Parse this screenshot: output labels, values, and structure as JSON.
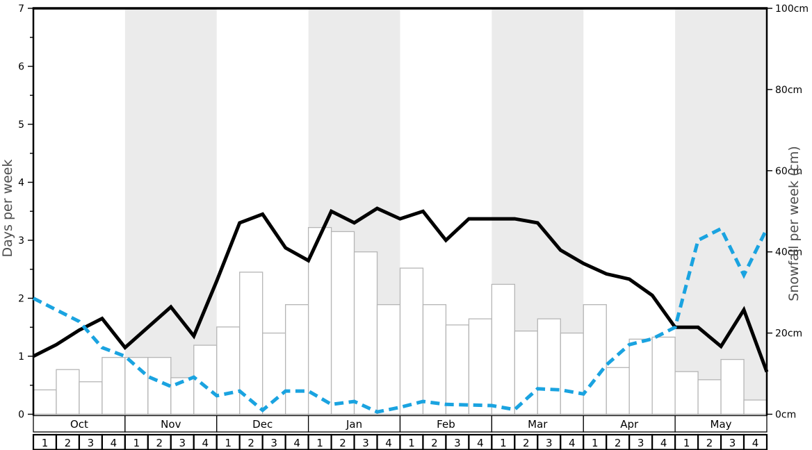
{
  "colors": {
    "band": "#ebebeb",
    "bar_fill": "#ffffff",
    "bar_border": "#b5b5b5",
    "baseline": "#999999",
    "spine": "#000000",
    "tick": "#000000",
    "axis_title": "#4d4d4d",
    "black_line": "#000000",
    "blue_line": "#1aa3e0",
    "cell_border": "#000000",
    "cell_fill": "#ffffff"
  },
  "chart_data": {
    "type": "line+bar",
    "title": "",
    "left_axis": {
      "label": "Days per week",
      "min": 0,
      "max": 7,
      "major_tick_labels": [
        "0",
        "1",
        "2",
        "3",
        "4",
        "5",
        "6",
        "7"
      ],
      "minor_step": 0.5
    },
    "right_axis": {
      "label": "Snowfall per week (cm)",
      "min": 0,
      "max": 100,
      "tick_step": 20,
      "tick_labels": [
        "0cm",
        "20cm",
        "40cm",
        "60cm",
        "80cm",
        "100cm"
      ]
    },
    "x_axis": {
      "months": [
        "Oct",
        "Nov",
        "Dec",
        "Jan",
        "Feb",
        "Mar",
        "Apr",
        "May"
      ],
      "weeks_per_month": 4,
      "week_labels": [
        "1",
        "2",
        "3",
        "4"
      ],
      "shaded_months": [
        "Nov",
        "Jan",
        "Mar",
        "May"
      ]
    },
    "bars": {
      "name": "snowfall-per-week",
      "unit": "cm",
      "axis": "right",
      "values": [
        6,
        11,
        8,
        14,
        14,
        14,
        9,
        17,
        21.5,
        35,
        20,
        27,
        46,
        45,
        40,
        27,
        36,
        27,
        22,
        23.5,
        32,
        20.5,
        23.5,
        20,
        27,
        11.5,
        18.5,
        19,
        10.5,
        8.5,
        13.5,
        3.5
      ]
    },
    "series": [
      {
        "name": "black-solid-line",
        "style": "solid",
        "axis": "left",
        "unit": "days",
        "color": "#000000",
        "values": [
          1.0,
          1.2,
          1.45,
          1.65,
          1.15,
          1.5,
          1.85,
          1.35,
          2.3,
          3.3,
          3.45,
          2.87,
          2.65,
          3.5,
          3.3,
          3.55,
          3.37,
          3.5,
          3.0,
          3.37,
          3.37,
          3.37,
          3.3,
          2.83,
          2.6,
          2.42,
          2.33,
          2.05,
          1.5,
          1.5,
          1.17,
          1.8,
          0.73
        ]
      },
      {
        "name": "blue-dashed-line",
        "style": "dashed",
        "axis": "left",
        "unit": "days",
        "color": "#1aa3e0",
        "values": [
          2.0,
          1.8,
          1.6,
          1.15,
          1.0,
          0.65,
          0.48,
          0.64,
          0.32,
          0.4,
          0.07,
          0.4,
          0.4,
          0.17,
          0.22,
          0.04,
          0.12,
          0.22,
          0.17,
          0.16,
          0.15,
          0.08,
          0.44,
          0.42,
          0.35,
          0.85,
          1.2,
          1.3,
          1.5,
          3.0,
          3.2,
          2.4,
          3.2
        ]
      }
    ]
  }
}
